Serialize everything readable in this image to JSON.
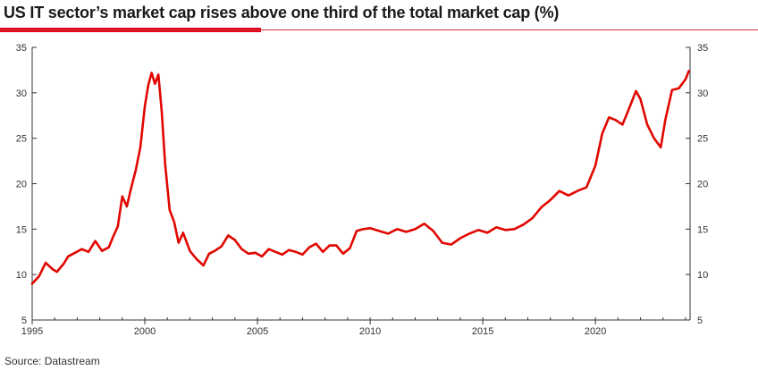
{
  "title": "US IT sector’s market cap rises above one third of the total market cap (%)",
  "source": "Source: Datastream",
  "chart_data": {
    "type": "line",
    "title": "US IT sector’s market cap rises above one third of the total market cap (%)",
    "xlabel": "",
    "ylabel": "",
    "xlim": [
      1995,
      2024.2
    ],
    "ylim": [
      5,
      35
    ],
    "x_ticks": [
      "1995",
      "2000",
      "2005",
      "2010",
      "2015",
      "2020"
    ],
    "y_ticks": [
      "5",
      "10",
      "15",
      "20",
      "25",
      "30",
      "35"
    ],
    "grid": false,
    "legend": "none",
    "color": "#e10600",
    "series": [
      {
        "name": "",
        "x": [
          1995.0,
          1995.3,
          1995.6,
          1995.9,
          1996.1,
          1996.4,
          1996.6,
          1996.9,
          1997.2,
          1997.5,
          1997.8,
          1998.1,
          1998.4,
          1998.6,
          1998.8,
          1999.0,
          1999.2,
          1999.4,
          1999.6,
          1999.8,
          2000.0,
          2000.15,
          2000.3,
          2000.45,
          2000.6,
          2000.75,
          2000.9,
          2001.1,
          2001.3,
          2001.5,
          2001.7,
          2002.0,
          2002.3,
          2002.6,
          2002.85,
          2003.1,
          2003.4,
          2003.7,
          2004.0,
          2004.3,
          2004.6,
          2004.9,
          2005.2,
          2005.5,
          2005.8,
          2006.1,
          2006.4,
          2006.7,
          2007.0,
          2007.3,
          2007.6,
          2007.9,
          2008.2,
          2008.5,
          2008.8,
          2009.1,
          2009.4,
          2009.7,
          2010.0,
          2010.4,
          2010.8,
          2011.2,
          2011.6,
          2012.0,
          2012.4,
          2012.8,
          2013.2,
          2013.6,
          2014.0,
          2014.4,
          2014.8,
          2015.2,
          2015.6,
          2016.0,
          2016.4,
          2016.8,
          2017.2,
          2017.6,
          2018.0,
          2018.4,
          2018.8,
          2019.2,
          2019.6,
          2020.0,
          2020.3,
          2020.6,
          2020.9,
          2021.2,
          2021.5,
          2021.8,
          2022.0,
          2022.3,
          2022.6,
          2022.9,
          2023.1,
          2023.4,
          2023.7,
          2024.0,
          2024.15
        ],
        "values": [
          9.0,
          9.8,
          11.3,
          10.6,
          10.3,
          11.2,
          12.0,
          12.4,
          12.8,
          12.5,
          13.7,
          12.6,
          13.0,
          14.2,
          15.3,
          18.6,
          17.5,
          19.6,
          21.5,
          24.0,
          28.5,
          30.8,
          32.2,
          31.0,
          32.0,
          28.0,
          22.2,
          17.1,
          15.8,
          13.5,
          14.6,
          12.6,
          11.7,
          11.0,
          12.3,
          12.6,
          13.1,
          14.3,
          13.8,
          12.8,
          12.3,
          12.4,
          12.0,
          12.8,
          12.5,
          12.2,
          12.7,
          12.5,
          12.2,
          13.0,
          13.4,
          12.5,
          13.2,
          13.2,
          12.3,
          12.9,
          14.8,
          15.0,
          15.1,
          14.8,
          14.5,
          15.0,
          14.7,
          15.0,
          15.6,
          14.8,
          13.5,
          13.3,
          14.0,
          14.5,
          14.9,
          14.6,
          15.2,
          14.9,
          15.0,
          15.5,
          16.2,
          17.4,
          18.2,
          19.2,
          18.7,
          19.2,
          19.6,
          22.0,
          25.5,
          27.3,
          27.0,
          26.5,
          28.3,
          30.2,
          29.3,
          26.5,
          25.0,
          24.0,
          27.0,
          30.3,
          30.5,
          31.5,
          32.4
        ]
      }
    ]
  }
}
